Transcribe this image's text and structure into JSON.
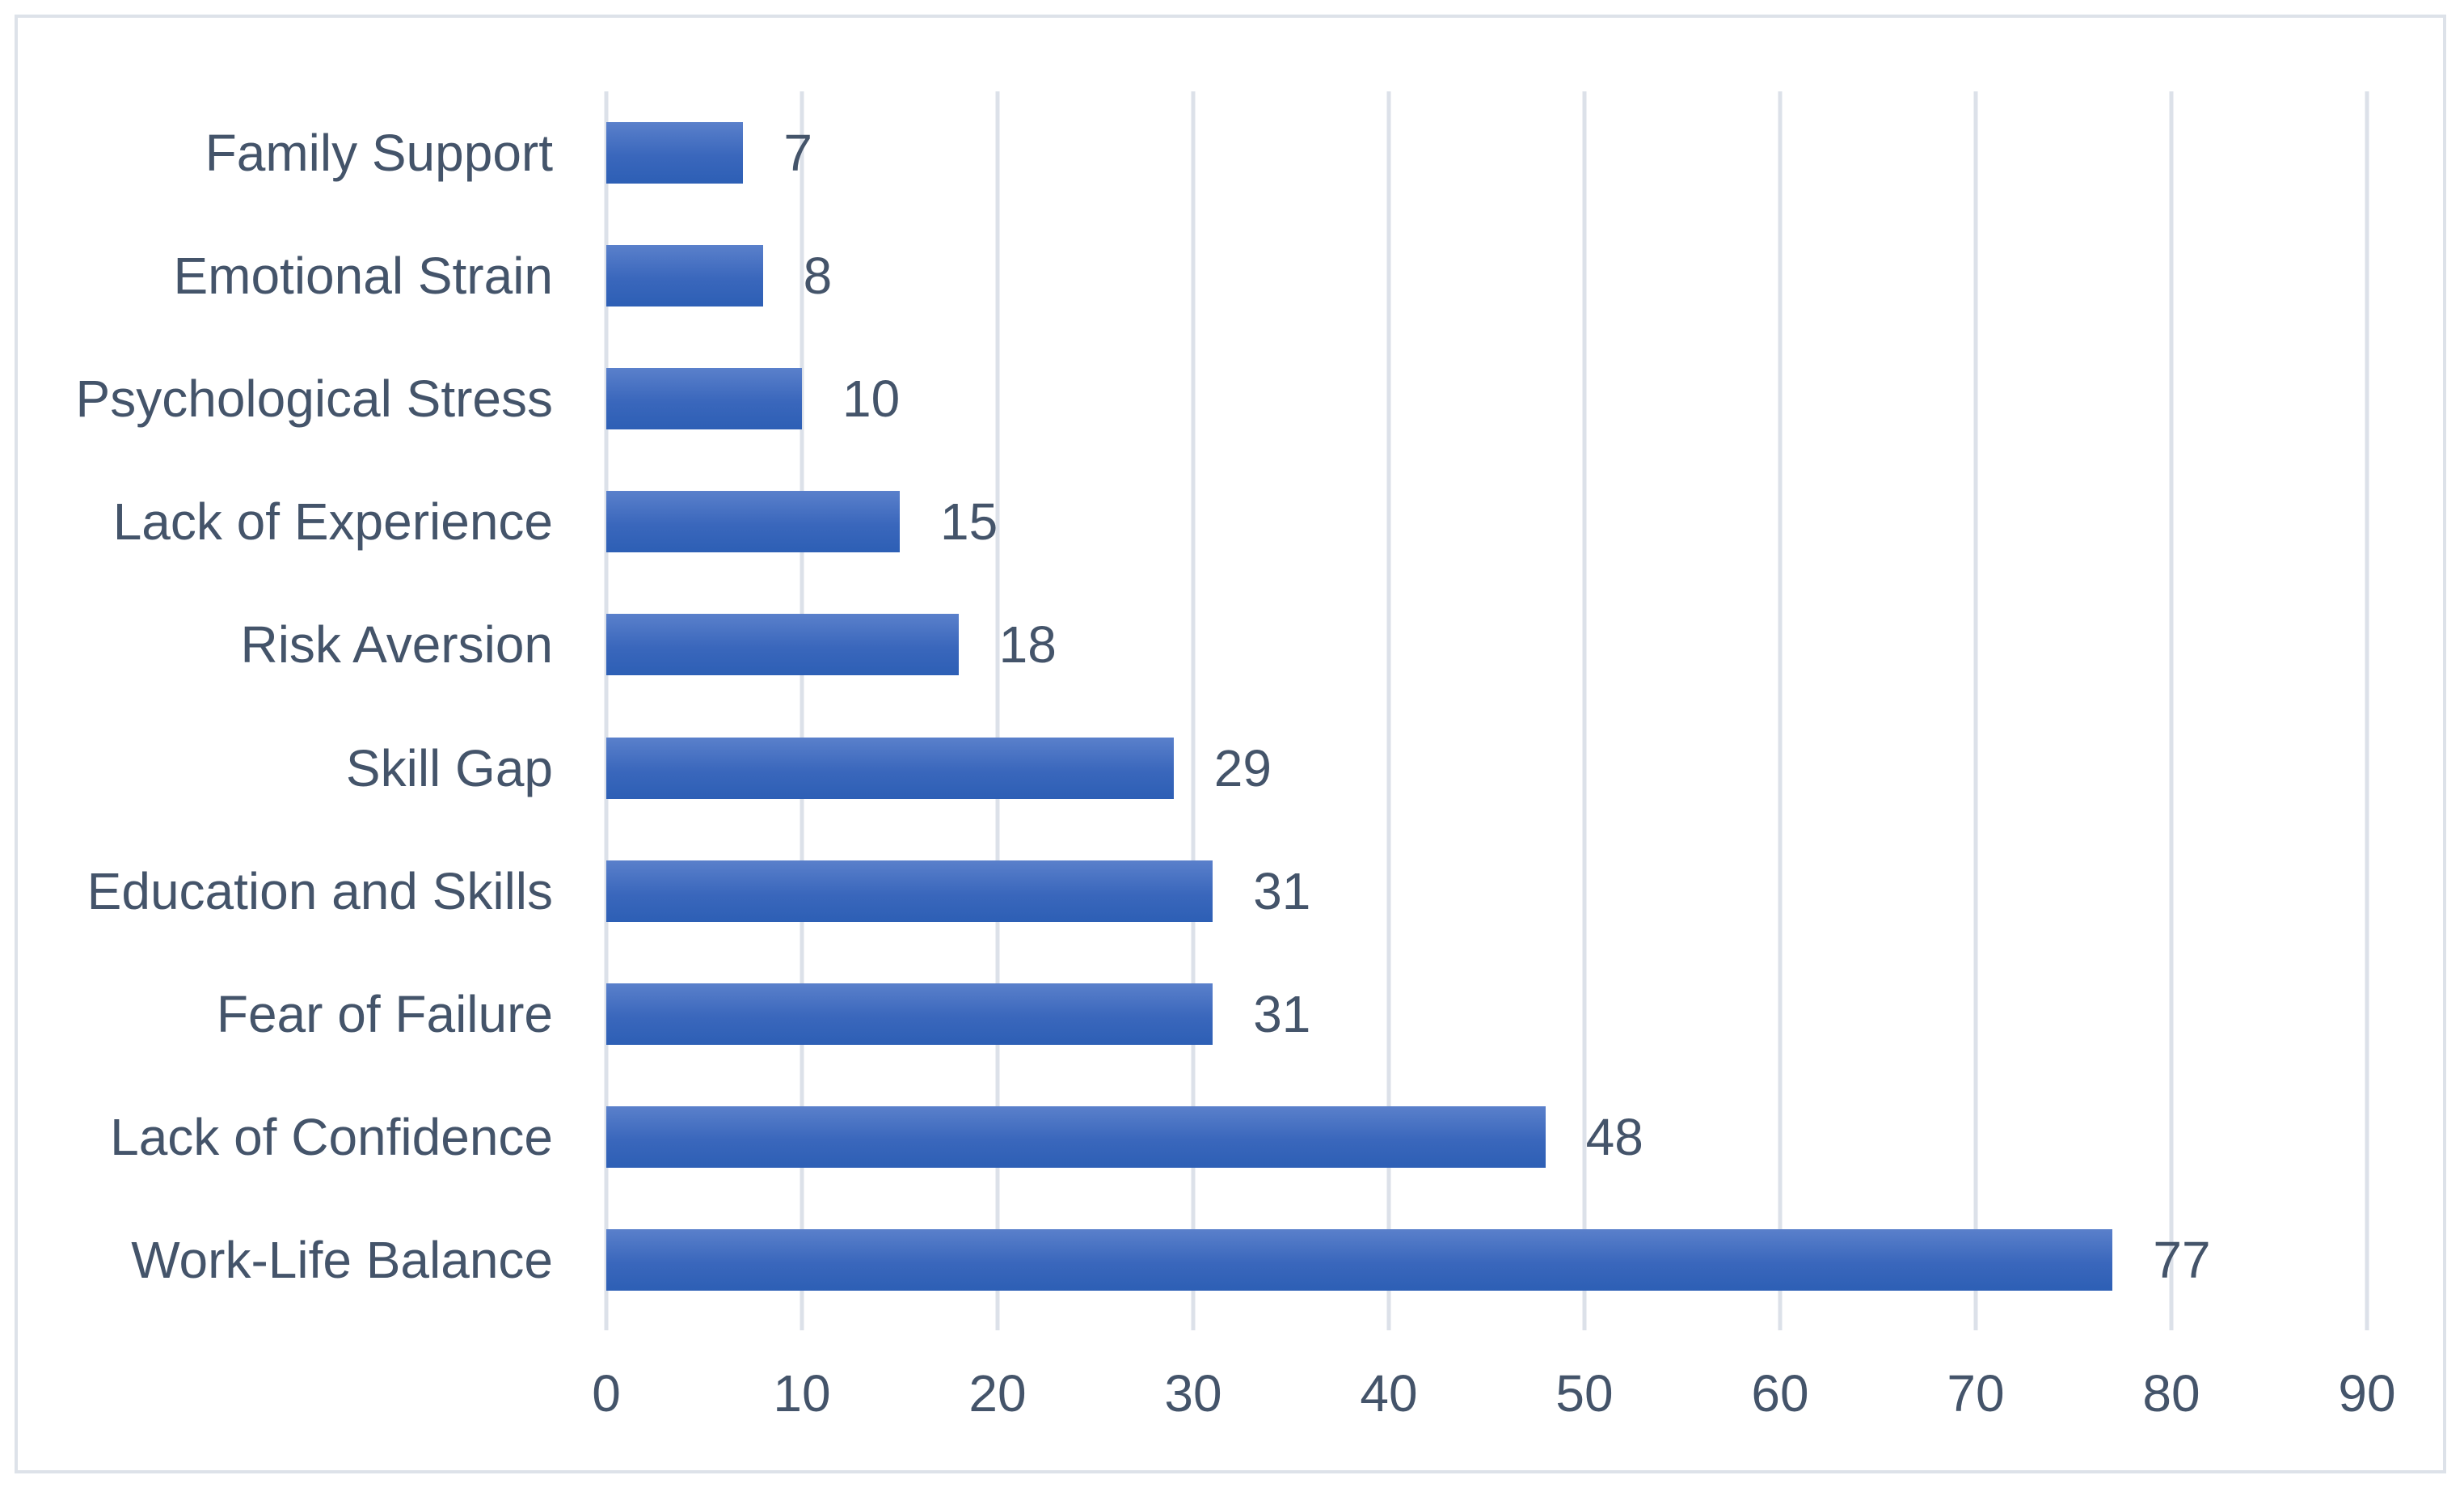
{
  "chart_data": {
    "type": "bar",
    "orientation": "horizontal",
    "title": "",
    "xlabel": "",
    "ylabel": "",
    "categories": [
      "Family Support",
      "Emotional Strain",
      "Psychological Stress",
      "Lack of Experience",
      "Risk Aversion",
      "Skill Gap",
      "Education and Skills",
      "Fear of Failure",
      "Lack of Confidence",
      "Work-Life Balance"
    ],
    "values": [
      7,
      8,
      10,
      15,
      18,
      29,
      31,
      31,
      48,
      77
    ],
    "data_labels": [
      7,
      8,
      10,
      15,
      18,
      29,
      31,
      31,
      48,
      77
    ],
    "xlim": [
      0,
      90
    ],
    "x_ticks": [
      0,
      10,
      20,
      30,
      40,
      50,
      60,
      70,
      80,
      90
    ],
    "grid": "vertical-only",
    "legend": "none",
    "colors": {
      "bar_gradient_top": "#5a80cb",
      "bar_gradient_mid": "#3a67bc",
      "bar_gradient_bottom": "#2d5fb5",
      "text": "#44546a",
      "gridline": "#dce1e9",
      "frame_border": "#dde2e9",
      "background": "#ffffff"
    }
  }
}
